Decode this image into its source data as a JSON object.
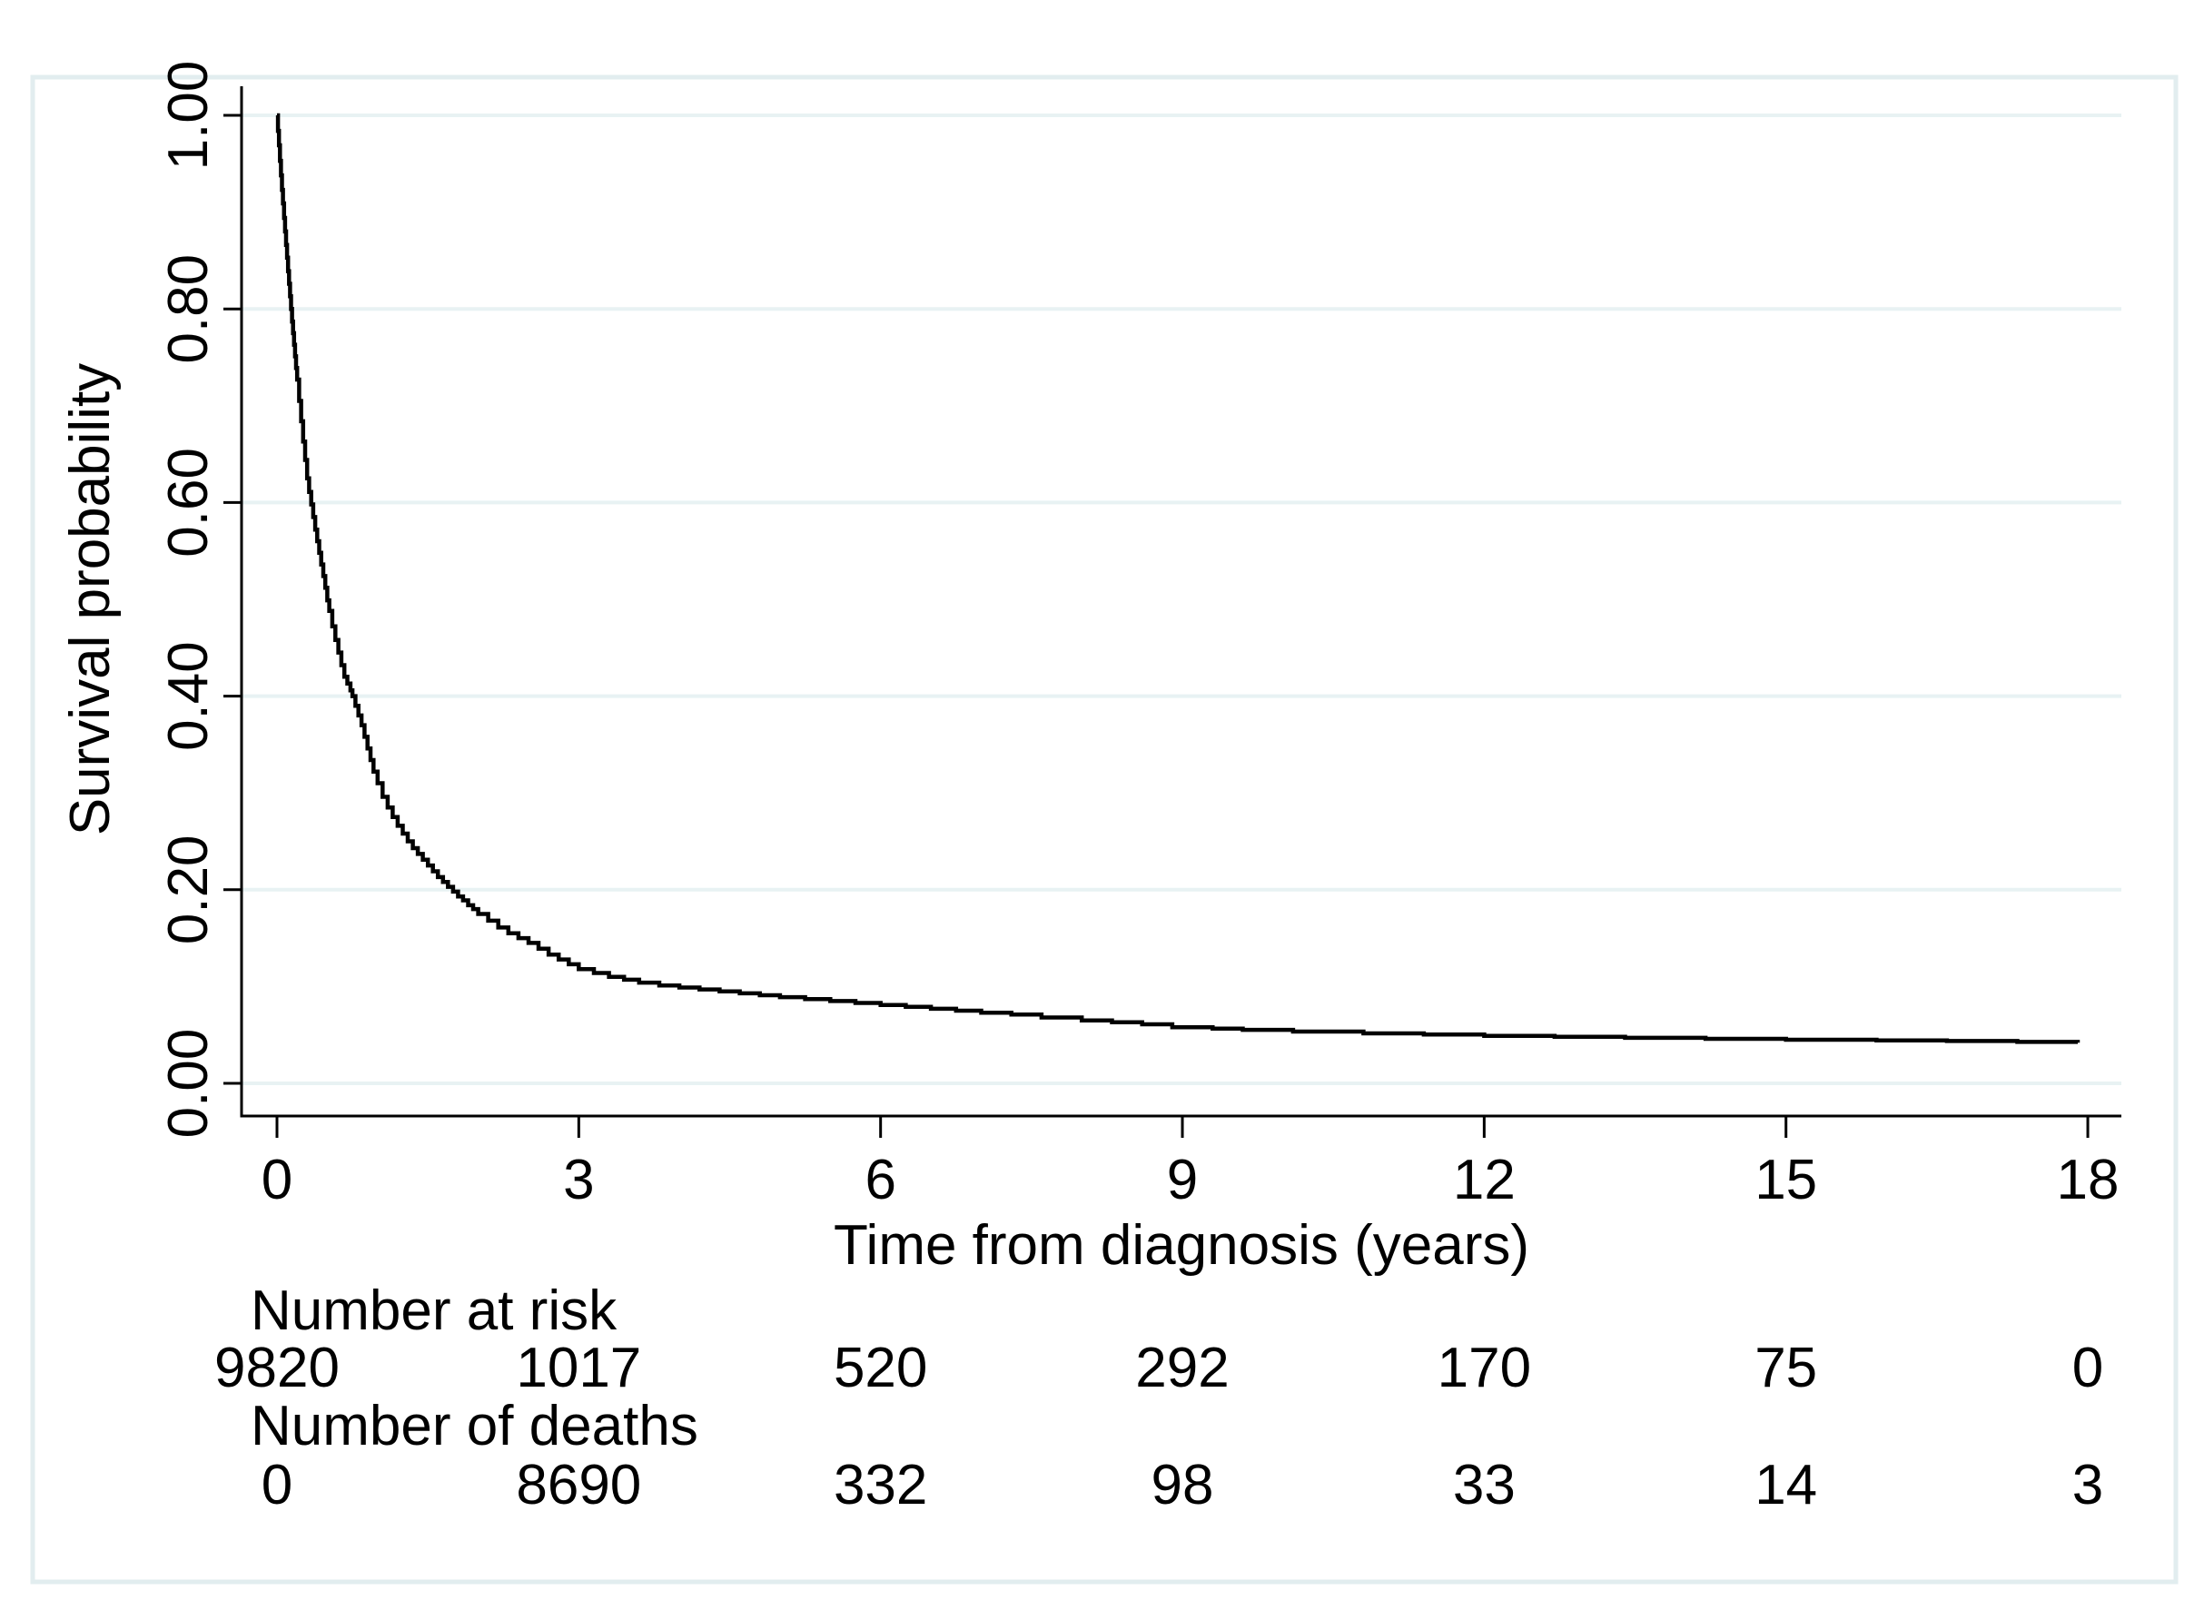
{
  "figure": {
    "background": "#ffffff",
    "border_color": "#e2edef"
  },
  "chart_data": {
    "type": "line",
    "subtype": "kaplan-meier-step-curve",
    "title": "",
    "xlabel": "Time from diagnosis (years)",
    "ylabel": "Survival probability",
    "x_tick_values": [
      0,
      3,
      6,
      9,
      12,
      15,
      18
    ],
    "x_tick_labels": [
      "0",
      "3",
      "6",
      "9",
      "12",
      "15",
      "18"
    ],
    "y_tick_values": [
      0.0,
      0.2,
      0.4,
      0.6,
      0.8,
      1.0
    ],
    "y_tick_labels": [
      "0.00",
      "0.20",
      "0.40",
      "0.60",
      "0.80",
      "1.00"
    ],
    "xlim": [
      0,
      18.4
    ],
    "ylim": [
      0,
      1
    ],
    "grid": true,
    "grid_color": "#e8f2f3",
    "line_color": "#000000",
    "legend": "none",
    "series": [
      {
        "name": "Survival probability",
        "step": "after",
        "points": [
          [
            0.0,
            1.0
          ],
          [
            0.01,
            0.984
          ],
          [
            0.02,
            0.969
          ],
          [
            0.03,
            0.953
          ],
          [
            0.04,
            0.938
          ],
          [
            0.05,
            0.923
          ],
          [
            0.06,
            0.909
          ],
          [
            0.07,
            0.894
          ],
          [
            0.08,
            0.88
          ],
          [
            0.09,
            0.866
          ],
          [
            0.1,
            0.853
          ],
          [
            0.11,
            0.839
          ],
          [
            0.12,
            0.826
          ],
          [
            0.13,
            0.813
          ],
          [
            0.14,
            0.8
          ],
          [
            0.15,
            0.787
          ],
          [
            0.16,
            0.775
          ],
          [
            0.17,
            0.763
          ],
          [
            0.18,
            0.751
          ],
          [
            0.19,
            0.739
          ],
          [
            0.2,
            0.727
          ],
          [
            0.22,
            0.705
          ],
          [
            0.24,
            0.684
          ],
          [
            0.26,
            0.663
          ],
          [
            0.28,
            0.644
          ],
          [
            0.3,
            0.625
          ],
          [
            0.32,
            0.611
          ],
          [
            0.34,
            0.598
          ],
          [
            0.36,
            0.585
          ],
          [
            0.38,
            0.572
          ],
          [
            0.4,
            0.56
          ],
          [
            0.42,
            0.548
          ],
          [
            0.44,
            0.536
          ],
          [
            0.46,
            0.524
          ],
          [
            0.48,
            0.512
          ],
          [
            0.5,
            0.499
          ],
          [
            0.52,
            0.488
          ],
          [
            0.55,
            0.472
          ],
          [
            0.58,
            0.458
          ],
          [
            0.61,
            0.445
          ],
          [
            0.64,
            0.432
          ],
          [
            0.67,
            0.42
          ],
          [
            0.7,
            0.413
          ],
          [
            0.73,
            0.406
          ],
          [
            0.75,
            0.4
          ],
          [
            0.78,
            0.39
          ],
          [
            0.81,
            0.38
          ],
          [
            0.84,
            0.37
          ],
          [
            0.87,
            0.358
          ],
          [
            0.9,
            0.346
          ],
          [
            0.93,
            0.334
          ],
          [
            0.96,
            0.322
          ],
          [
            1.0,
            0.31
          ],
          [
            1.05,
            0.296
          ],
          [
            1.1,
            0.285
          ],
          [
            1.15,
            0.275
          ],
          [
            1.2,
            0.266
          ],
          [
            1.25,
            0.258
          ],
          [
            1.3,
            0.25
          ],
          [
            1.35,
            0.243
          ],
          [
            1.4,
            0.237
          ],
          [
            1.45,
            0.231
          ],
          [
            1.5,
            0.225
          ],
          [
            1.55,
            0.219
          ],
          [
            1.6,
            0.213
          ],
          [
            1.65,
            0.208
          ],
          [
            1.7,
            0.203
          ],
          [
            1.75,
            0.198
          ],
          [
            1.8,
            0.193
          ],
          [
            1.85,
            0.189
          ],
          [
            1.9,
            0.184
          ],
          [
            1.95,
            0.18
          ],
          [
            2.0,
            0.175
          ],
          [
            2.1,
            0.168
          ],
          [
            2.2,
            0.161
          ],
          [
            2.3,
            0.155
          ],
          [
            2.4,
            0.15
          ],
          [
            2.5,
            0.145
          ],
          [
            2.6,
            0.139
          ],
          [
            2.7,
            0.133
          ],
          [
            2.8,
            0.128
          ],
          [
            2.9,
            0.123
          ],
          [
            3.0,
            0.118
          ],
          [
            3.15,
            0.114
          ],
          [
            3.3,
            0.11
          ],
          [
            3.45,
            0.107
          ],
          [
            3.6,
            0.104
          ],
          [
            3.8,
            0.101
          ],
          [
            4.0,
            0.099
          ],
          [
            4.2,
            0.097
          ],
          [
            4.4,
            0.095
          ],
          [
            4.6,
            0.093
          ],
          [
            4.8,
            0.091
          ],
          [
            5.0,
            0.089
          ],
          [
            5.25,
            0.087
          ],
          [
            5.5,
            0.085
          ],
          [
            5.75,
            0.083
          ],
          [
            6.0,
            0.081
          ],
          [
            6.25,
            0.079
          ],
          [
            6.5,
            0.077
          ],
          [
            6.75,
            0.075
          ],
          [
            7.0,
            0.073
          ],
          [
            7.3,
            0.071
          ],
          [
            7.6,
            0.068
          ],
          [
            8.0,
            0.065
          ],
          [
            8.3,
            0.063
          ],
          [
            8.6,
            0.061
          ],
          [
            8.9,
            0.058
          ],
          [
            9.3,
            0.0565
          ],
          [
            9.6,
            0.0553
          ],
          [
            10.1,
            0.0535
          ],
          [
            10.8,
            0.0516
          ],
          [
            11.4,
            0.0505
          ],
          [
            12.0,
            0.049
          ],
          [
            12.7,
            0.048
          ],
          [
            13.4,
            0.047
          ],
          [
            14.2,
            0.046
          ],
          [
            15.0,
            0.045
          ],
          [
            15.9,
            0.0443
          ],
          [
            16.6,
            0.0437
          ],
          [
            17.3,
            0.0428
          ],
          [
            17.9,
            0.042
          ]
        ]
      }
    ],
    "risk_table": {
      "rows": [
        {
          "label": "Number at risk",
          "values": [
            "9820",
            "1017",
            "520",
            "292",
            "170",
            "75",
            "0"
          ]
        },
        {
          "label": "Number of deaths",
          "values": [
            "0",
            "8690",
            "332",
            "98",
            "33",
            "14",
            "3"
          ]
        }
      ]
    }
  }
}
